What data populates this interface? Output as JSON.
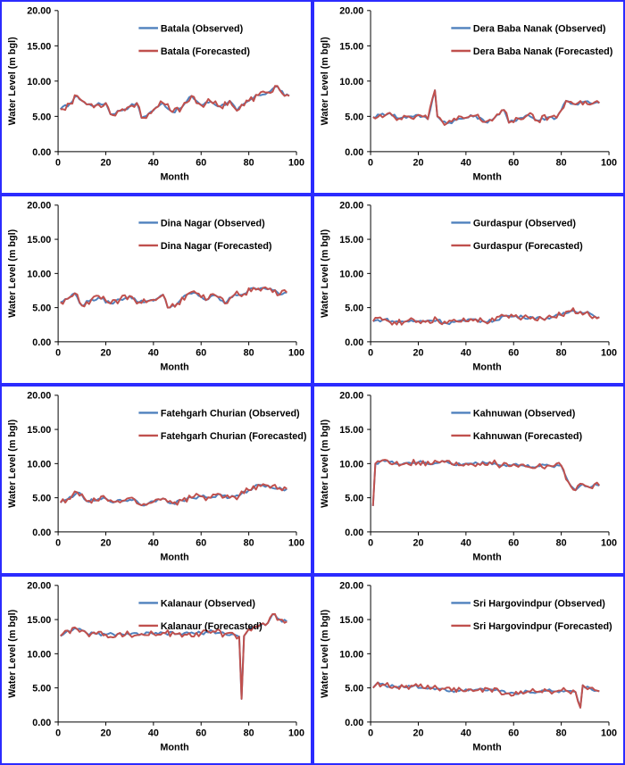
{
  "colors": {
    "observed": "#4f81bd",
    "forecasted": "#c0504d",
    "frame": "#2b2bff"
  },
  "chart_data": [
    {
      "type": "line",
      "title": "",
      "station": "Batala",
      "xlabel": "Month",
      "ylabel": "Water Level (m bgl)",
      "xlim": [
        0,
        100
      ],
      "ylim": [
        0,
        20
      ],
      "xticks": [
        0,
        20,
        40,
        60,
        80,
        100
      ],
      "yticks": [
        "0.00",
        "5.00",
        "10.00",
        "15.00",
        "20.00"
      ],
      "legend": [
        "Batala (Observed)",
        "Batala (Forecasted)"
      ],
      "anchors": [
        [
          1,
          6.0
        ],
        [
          5,
          6.8
        ],
        [
          8,
          7.9
        ],
        [
          12,
          6.7
        ],
        [
          16,
          6.6
        ],
        [
          20,
          6.9
        ],
        [
          22,
          5.3
        ],
        [
          26,
          5.8
        ],
        [
          30,
          6.4
        ],
        [
          33,
          6.9
        ],
        [
          35,
          4.8
        ],
        [
          38,
          5.4
        ],
        [
          42,
          6.4
        ],
        [
          44,
          6.9
        ],
        [
          48,
          5.6
        ],
        [
          52,
          6.3
        ],
        [
          56,
          7.9
        ],
        [
          60,
          6.6
        ],
        [
          64,
          7.1
        ],
        [
          68,
          6.4
        ],
        [
          72,
          7.2
        ],
        [
          75,
          5.8
        ],
        [
          80,
          7.2
        ],
        [
          84,
          8.0
        ],
        [
          88,
          8.4
        ],
        [
          92,
          9.3
        ],
        [
          95,
          7.9
        ],
        [
          97,
          7.9
        ]
      ]
    },
    {
      "type": "line",
      "title": "",
      "station": "Dera Baba Nanak",
      "xlabel": "Month",
      "ylabel": "Water Level (m bgl)",
      "xlim": [
        0,
        100
      ],
      "ylim": [
        0,
        20
      ],
      "xticks": [
        0,
        20,
        40,
        60,
        80,
        100
      ],
      "yticks": [
        "0.00",
        "5.00",
        "10.00",
        "15.00",
        "20.00"
      ],
      "legend": [
        "Dera Baba Nanak (Observed)",
        "Dera Baba Nanak (Forecasted)"
      ],
      "anchors": [
        [
          1,
          4.9
        ],
        [
          4,
          5.2
        ],
        [
          8,
          5.5
        ],
        [
          12,
          4.7
        ],
        [
          16,
          5.0
        ],
        [
          20,
          5.2
        ],
        [
          24,
          4.6
        ],
        [
          27,
          8.7
        ],
        [
          28,
          5.0
        ],
        [
          32,
          4.0
        ],
        [
          36,
          4.5
        ],
        [
          40,
          4.8
        ],
        [
          44,
          5.1
        ],
        [
          48,
          4.2
        ],
        [
          52,
          4.8
        ],
        [
          56,
          5.9
        ],
        [
          58,
          4.1
        ],
        [
          62,
          4.7
        ],
        [
          66,
          5.2
        ],
        [
          70,
          4.4
        ],
        [
          75,
          4.9
        ],
        [
          78,
          4.8
        ],
        [
          82,
          7.2
        ],
        [
          86,
          6.7
        ],
        [
          90,
          7.1
        ],
        [
          93,
          6.8
        ],
        [
          96,
          6.9
        ]
      ]
    },
    {
      "type": "line",
      "title": "",
      "station": "Dina Nagar",
      "xlabel": "Month",
      "ylabel": "Water Level (m bgl)",
      "xlim": [
        0,
        100
      ],
      "ylim": [
        0,
        20
      ],
      "xticks": [
        0,
        20,
        40,
        60,
        80,
        100
      ],
      "yticks": [
        "0.00",
        "5.00",
        "10.00",
        "15.00",
        "20.00"
      ],
      "legend": [
        "Dina Nagar (Observed)",
        "Dina Nagar (Forecasted)"
      ],
      "anchors": [
        [
          1,
          5.8
        ],
        [
          4,
          6.3
        ],
        [
          7,
          7.1
        ],
        [
          10,
          5.3
        ],
        [
          14,
          6.2
        ],
        [
          18,
          6.3
        ],
        [
          22,
          5.6
        ],
        [
          26,
          6.2
        ],
        [
          30,
          6.7
        ],
        [
          34,
          5.8
        ],
        [
          38,
          6.0
        ],
        [
          42,
          6.4
        ],
        [
          44,
          6.9
        ],
        [
          46,
          5.0
        ],
        [
          50,
          5.6
        ],
        [
          54,
          6.9
        ],
        [
          58,
          7.1
        ],
        [
          62,
          6.1
        ],
        [
          66,
          6.8
        ],
        [
          70,
          5.6
        ],
        [
          74,
          6.9
        ],
        [
          78,
          7.0
        ],
        [
          82,
          7.9
        ],
        [
          86,
          7.9
        ],
        [
          89,
          7.8
        ],
        [
          93,
          6.9
        ],
        [
          96,
          7.2
        ]
      ]
    },
    {
      "type": "line",
      "title": "",
      "station": "Gurdaspur",
      "xlabel": "Month",
      "ylabel": "Water Level (m bgl)",
      "xlim": [
        0,
        100
      ],
      "ylim": [
        0,
        20
      ],
      "xticks": [
        0,
        20,
        40,
        60,
        80,
        100
      ],
      "yticks": [
        "0.00",
        "5.00",
        "10.00",
        "15.00",
        "20.00"
      ],
      "legend": [
        "Gurdaspur (Observed)",
        "Gurdaspur (Forecasted)"
      ],
      "anchors": [
        [
          1,
          3.0
        ],
        [
          6,
          3.3
        ],
        [
          10,
          2.9
        ],
        [
          15,
          3.0
        ],
        [
          20,
          3.0
        ],
        [
          24,
          3.1
        ],
        [
          28,
          3.2
        ],
        [
          32,
          2.7
        ],
        [
          36,
          3.0
        ],
        [
          40,
          3.0
        ],
        [
          44,
          3.3
        ],
        [
          48,
          2.9
        ],
        [
          52,
          3.1
        ],
        [
          56,
          3.8
        ],
        [
          60,
          3.7
        ],
        [
          64,
          3.6
        ],
        [
          68,
          3.6
        ],
        [
          72,
          3.4
        ],
        [
          76,
          3.6
        ],
        [
          80,
          3.9
        ],
        [
          84,
          4.5
        ],
        [
          88,
          4.4
        ],
        [
          91,
          4.4
        ],
        [
          94,
          3.7
        ],
        [
          96,
          3.6
        ]
      ]
    },
    {
      "type": "line",
      "title": "",
      "station": "Fatehgarh Churian",
      "xlabel": "Month",
      "ylabel": "Water Level (m bgl)",
      "xlim": [
        0,
        100
      ],
      "ylim": [
        0,
        20
      ],
      "xticks": [
        0,
        20,
        40,
        60,
        80,
        100
      ],
      "yticks": [
        "0.00",
        "5.00",
        "10.00",
        "15.00",
        "20.00"
      ],
      "legend": [
        "Fatehgarh Churian (Observed)",
        "Fatehgarh Churian (Forecasted)"
      ],
      "anchors": [
        [
          1,
          4.3
        ],
        [
          4,
          4.8
        ],
        [
          8,
          5.8
        ],
        [
          12,
          4.5
        ],
        [
          16,
          4.6
        ],
        [
          20,
          4.9
        ],
        [
          24,
          4.4
        ],
        [
          28,
          4.6
        ],
        [
          32,
          4.8
        ],
        [
          35,
          3.9
        ],
        [
          38,
          4.2
        ],
        [
          42,
          4.8
        ],
        [
          44,
          4.9
        ],
        [
          48,
          4.2
        ],
        [
          52,
          4.6
        ],
        [
          56,
          5.0
        ],
        [
          60,
          5.2
        ],
        [
          64,
          5.0
        ],
        [
          68,
          5.5
        ],
        [
          72,
          5.0
        ],
        [
          76,
          5.3
        ],
        [
          80,
          6.1
        ],
        [
          84,
          6.9
        ],
        [
          88,
          6.8
        ],
        [
          92,
          6.3
        ],
        [
          96,
          6.3
        ]
      ]
    },
    {
      "type": "line",
      "title": "",
      "station": "Kahnuwan",
      "xlabel": "Month",
      "ylabel": "Water Level (m bgl)",
      "xlim": [
        0,
        100
      ],
      "ylim": [
        0,
        20
      ],
      "xticks": [
        0,
        20,
        40,
        60,
        80,
        100
      ],
      "yticks": [
        "0.00",
        "5.00",
        "10.00",
        "15.00",
        "20.00"
      ],
      "legend": [
        "Kahnuwan (Observed)",
        "Kahnuwan (Forecasted)"
      ],
      "anchors": [
        [
          1,
          3.8
        ],
        [
          2,
          10.0
        ],
        [
          5,
          10.5
        ],
        [
          10,
          10.0
        ],
        [
          15,
          10.1
        ],
        [
          20,
          10.2
        ],
        [
          25,
          9.9
        ],
        [
          30,
          10.4
        ],
        [
          35,
          9.8
        ],
        [
          40,
          10.0
        ],
        [
          45,
          10.0
        ],
        [
          50,
          10.2
        ],
        [
          55,
          9.7
        ],
        [
          60,
          9.9
        ],
        [
          65,
          9.6
        ],
        [
          70,
          9.6
        ],
        [
          75,
          9.7
        ],
        [
          80,
          9.7
        ],
        [
          83,
          7.3
        ],
        [
          86,
          6.1
        ],
        [
          89,
          7.0
        ],
        [
          92,
          6.5
        ],
        [
          94,
          7.0
        ],
        [
          96,
          6.8
        ]
      ]
    },
    {
      "type": "line",
      "title": "",
      "station": "Kalanaur",
      "xlabel": "Month",
      "ylabel": "Water Level (m bgl)",
      "xlim": [
        0,
        100
      ],
      "ylim": [
        0,
        20
      ],
      "xticks": [
        0,
        20,
        40,
        60,
        80,
        100
      ],
      "yticks": [
        "0.00",
        "5.00",
        "10.00",
        "15.00",
        "20.00"
      ],
      "legend": [
        "Kalanaur (Observed)",
        "Kalanaur (Forecasted)"
      ],
      "anchors": [
        [
          1,
          12.6
        ],
        [
          4,
          13.4
        ],
        [
          8,
          13.6
        ],
        [
          12,
          13.0
        ],
        [
          16,
          12.9
        ],
        [
          20,
          12.8
        ],
        [
          25,
          12.9
        ],
        [
          30,
          12.8
        ],
        [
          35,
          12.9
        ],
        [
          40,
          12.9
        ],
        [
          45,
          13.0
        ],
        [
          50,
          12.9
        ],
        [
          55,
          13.0
        ],
        [
          60,
          13.0
        ],
        [
          65,
          13.3
        ],
        [
          70,
          12.9
        ],
        [
          74,
          12.8
        ],
        [
          76,
          12.5
        ],
        [
          77,
          3.4
        ],
        [
          78,
          12.6
        ],
        [
          80,
          13.6
        ],
        [
          84,
          14.0
        ],
        [
          88,
          14.5
        ],
        [
          90,
          15.8
        ],
        [
          93,
          15.0
        ],
        [
          96,
          14.7
        ]
      ]
    },
    {
      "type": "line",
      "title": "",
      "station": "Sri Hargovindpur",
      "xlabel": "Month",
      "ylabel": "Water Level (m bgl)",
      "xlim": [
        0,
        100
      ],
      "ylim": [
        0,
        20
      ],
      "xticks": [
        0,
        20,
        40,
        60,
        80,
        100
      ],
      "yticks": [
        "0.00",
        "5.00",
        "10.00",
        "15.00",
        "20.00"
      ],
      "legend": [
        "Sri Hargovindpur (Observed)",
        "Sri Hargovindpur (Forecasted)"
      ],
      "anchors": [
        [
          1,
          5.0
        ],
        [
          3,
          5.8
        ],
        [
          6,
          5.4
        ],
        [
          10,
          5.2
        ],
        [
          14,
          5.1
        ],
        [
          18,
          5.3
        ],
        [
          22,
          5.0
        ],
        [
          26,
          5.0
        ],
        [
          30,
          4.9
        ],
        [
          34,
          4.6
        ],
        [
          38,
          4.7
        ],
        [
          42,
          4.8
        ],
        [
          46,
          4.9
        ],
        [
          50,
          4.8
        ],
        [
          54,
          4.5
        ],
        [
          58,
          4.2
        ],
        [
          62,
          4.1
        ],
        [
          66,
          4.5
        ],
        [
          70,
          4.4
        ],
        [
          74,
          4.6
        ],
        [
          78,
          4.5
        ],
        [
          82,
          4.6
        ],
        [
          86,
          4.4
        ],
        [
          88,
          2.1
        ],
        [
          89,
          5.4
        ],
        [
          92,
          5.0
        ],
        [
          95,
          4.6
        ],
        [
          96,
          4.5
        ]
      ]
    }
  ]
}
